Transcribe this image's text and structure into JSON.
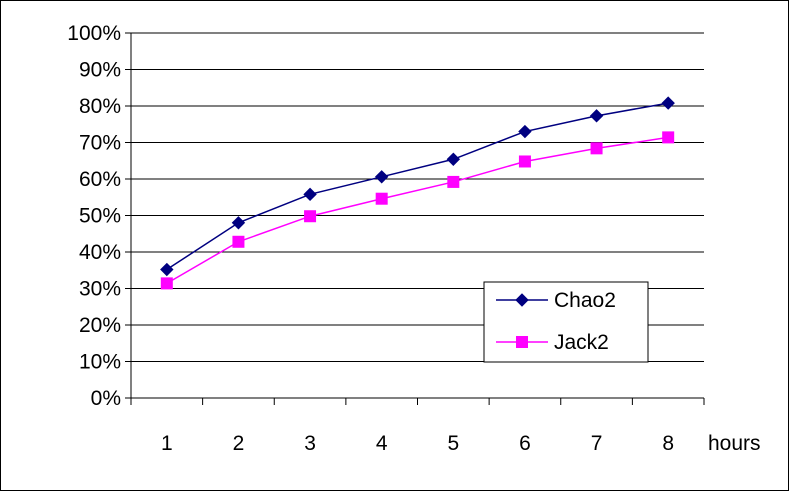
{
  "chart_data": {
    "type": "line",
    "title": "",
    "xlabel": "hours",
    "ylabel": "",
    "x": [
      1,
      2,
      3,
      4,
      5,
      6,
      7,
      8
    ],
    "ylim": [
      0,
      1
    ],
    "yticks": [
      0,
      0.1,
      0.2,
      0.3,
      0.4,
      0.5,
      0.6,
      0.7,
      0.8,
      0.9,
      1.0
    ],
    "ytick_labels": [
      "0%",
      "10%",
      "20%",
      "30%",
      "40%",
      "50%",
      "60%",
      "70%",
      "80%",
      "90%",
      "100%"
    ],
    "xtick_labels": [
      "1",
      "2",
      "3",
      "4",
      "5",
      "6",
      "7",
      "8"
    ],
    "grid": true,
    "legend": "inside-lower-right",
    "series": [
      {
        "name": "Chao2",
        "values": [
          0.352,
          0.48,
          0.558,
          0.606,
          0.654,
          0.73,
          0.773,
          0.808
        ],
        "color": "#000080",
        "marker": "diamond"
      },
      {
        "name": "Jack2",
        "values": [
          0.314,
          0.428,
          0.498,
          0.546,
          0.592,
          0.648,
          0.684,
          0.714
        ],
        "color": "#FF00FF",
        "marker": "square"
      }
    ]
  }
}
